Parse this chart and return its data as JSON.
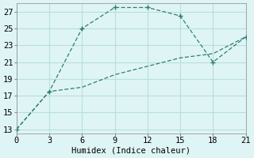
{
  "xlabel": "Humidex (Indice chaleur)",
  "line1_x": [
    0,
    3,
    6,
    9,
    12,
    15,
    18,
    21
  ],
  "line1_y": [
    13,
    17.5,
    25.0,
    27.5,
    27.5,
    26.5,
    21.0,
    24.0
  ],
  "line2_x": [
    0,
    3,
    6,
    9,
    12,
    15,
    18,
    21
  ],
  "line2_y": [
    13,
    17.5,
    18.0,
    19.5,
    20.5,
    21.5,
    22.0,
    24.0
  ],
  "line_color": "#2e7d6e",
  "background_color": "#dff5f5",
  "grid_color": "#b8dede",
  "xlim": [
    0,
    21
  ],
  "ylim": [
    12.5,
    28
  ],
  "xticks": [
    0,
    3,
    6,
    9,
    12,
    15,
    18,
    21
  ],
  "yticks": [
    13,
    15,
    17,
    19,
    21,
    23,
    25,
    27
  ],
  "label_fontsize": 7.5,
  "tick_fontsize": 7.5
}
